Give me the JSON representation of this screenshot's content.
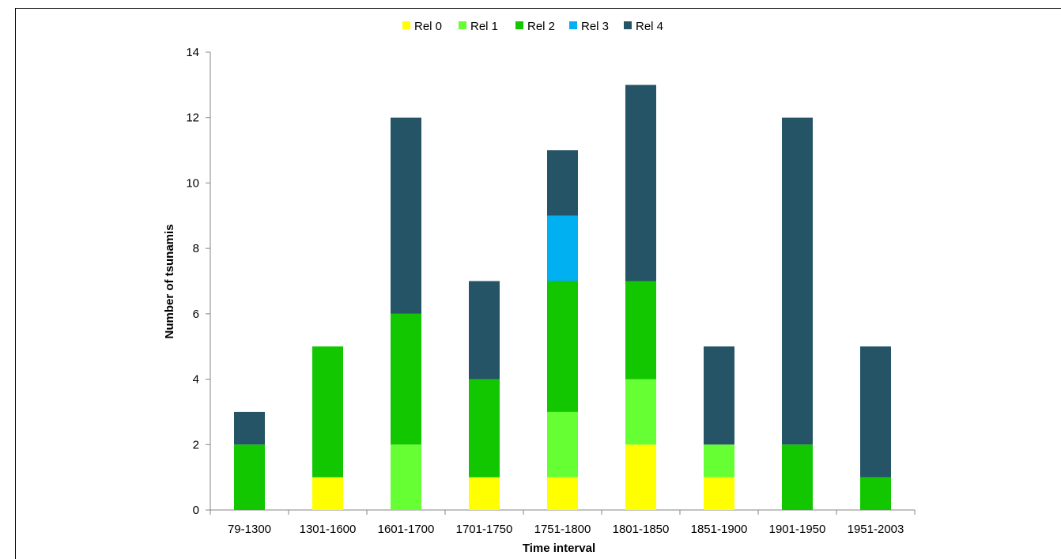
{
  "chart_data": {
    "type": "bar",
    "stacked": true,
    "title": "",
    "xlabel": "Time interval",
    "ylabel": "Number of tsunamis",
    "ylim": [
      0,
      14
    ],
    "yticks": [
      "0",
      "2",
      "4",
      "6",
      "8",
      "10",
      "12",
      "14"
    ],
    "grid": false,
    "legend_position": "top",
    "categories": [
      "79-1300",
      "1301-1600",
      "1601-1700",
      "1701-1750",
      "1751-1800",
      "1801-1850",
      "1851-1900",
      "1901-1950",
      "1951-2003"
    ],
    "series": [
      {
        "name": "Rel 0",
        "color": "#ffff00",
        "values": [
          0,
          1,
          0,
          1,
          1,
          2,
          1,
          0,
          0
        ]
      },
      {
        "name": "Rel 1",
        "color": "#66ff33",
        "values": [
          0,
          0,
          2,
          0,
          2,
          2,
          1,
          0,
          0
        ]
      },
      {
        "name": "Rel 2",
        "color": "#12c700",
        "values": [
          2,
          4,
          4,
          3,
          4,
          3,
          0,
          2,
          1
        ]
      },
      {
        "name": "Rel 3",
        "color": "#00b0f0",
        "values": [
          0,
          0,
          0,
          0,
          2,
          0,
          0,
          0,
          0
        ]
      },
      {
        "name": "Rel 4",
        "color": "#245466",
        "values": [
          1,
          0,
          6,
          3,
          2,
          6,
          3,
          10,
          4
        ]
      }
    ]
  }
}
